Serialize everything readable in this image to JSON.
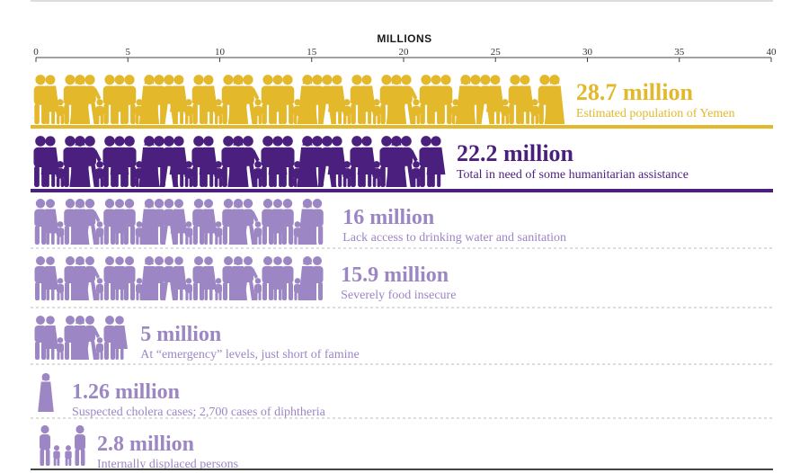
{
  "chart_data": {
    "type": "bar",
    "title": "",
    "xlabel": "MILLIONS",
    "ylabel": "",
    "xlim": [
      0,
      40
    ],
    "x_ticks": [
      "0",
      "5",
      "10",
      "15",
      "20",
      "25",
      "30",
      "35",
      "40"
    ],
    "grid": false,
    "rows": [
      {
        "value": 28.7,
        "value_label": "28.7 million",
        "description": "Estimated population of Yemen",
        "color": "#e3b82a"
      },
      {
        "value": 22.2,
        "value_label": "22.2 million",
        "description": "Total in need of some humanitarian assistance",
        "color": "#4b1f7e"
      },
      {
        "value": 16,
        "value_label": "16 million",
        "description": "Lack access to drinking water and sanitation",
        "color": "#9c86c4"
      },
      {
        "value": 15.9,
        "value_label": "15.9 million",
        "description": "Severely food insecure",
        "color": "#9c86c4"
      },
      {
        "value": 5,
        "value_label": "5 million",
        "description": "At “emergency” levels, just short of famine",
        "color": "#9c86c4"
      },
      {
        "value": 1.26,
        "value_label": "1.26 million",
        "description": "Suspected cholera cases; 2,700 cases of diphtheria",
        "color": "#9c86c4"
      },
      {
        "value": 2.8,
        "value_label": "2.8 million",
        "description": "Internally displaced persons",
        "color": "#9c86c4"
      }
    ]
  }
}
